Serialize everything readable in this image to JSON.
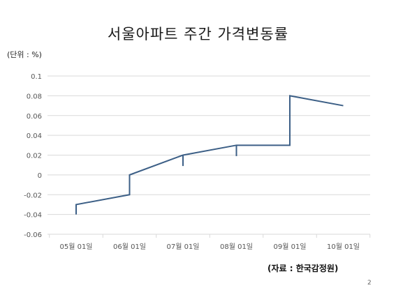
{
  "chart_data": {
    "type": "line",
    "title": "서울아파트 주간 가격변동률",
    "unit_label": "(단위 : %)",
    "source": "(자료 : 한국감정원)",
    "xlabel": "",
    "ylabel": "",
    "ylim": [
      -0.06,
      0.1
    ],
    "yticks": [
      0.1,
      0.08,
      0.06,
      0.04,
      0.02,
      0,
      -0.02,
      -0.04,
      -0.06
    ],
    "ytick_labels": [
      "0.1",
      "0.08",
      "0.06",
      "0.04",
      "0.02",
      "0",
      "-0.02",
      "-0.04",
      "-0.06"
    ],
    "x_categories": [
      "05월 01일",
      "06월 01일",
      "07월 01일",
      "08월 01일",
      "09월 01일",
      "10월 01일"
    ],
    "grid": true,
    "series": [
      {
        "color": "#3c5f86",
        "points": [
          {
            "x": 0,
            "y": -0.04
          },
          {
            "x": 0,
            "y": -0.03
          },
          {
            "x": 1,
            "y": -0.02
          },
          {
            "x": 1,
            "y": 0
          },
          {
            "x": 2,
            "y": 0.02
          },
          {
            "x": 3,
            "y": 0.03
          },
          {
            "x": 4,
            "y": 0.03
          },
          {
            "x": 4,
            "y": 0.08
          },
          {
            "x": 5,
            "y": 0.07
          }
        ],
        "drops": [
          {
            "x": 2,
            "y_top": 0.02,
            "y_bottom": 0.009
          },
          {
            "x": 3,
            "y_top": 0.03,
            "y_bottom": 0.019
          }
        ]
      }
    ]
  },
  "page_number": "2"
}
